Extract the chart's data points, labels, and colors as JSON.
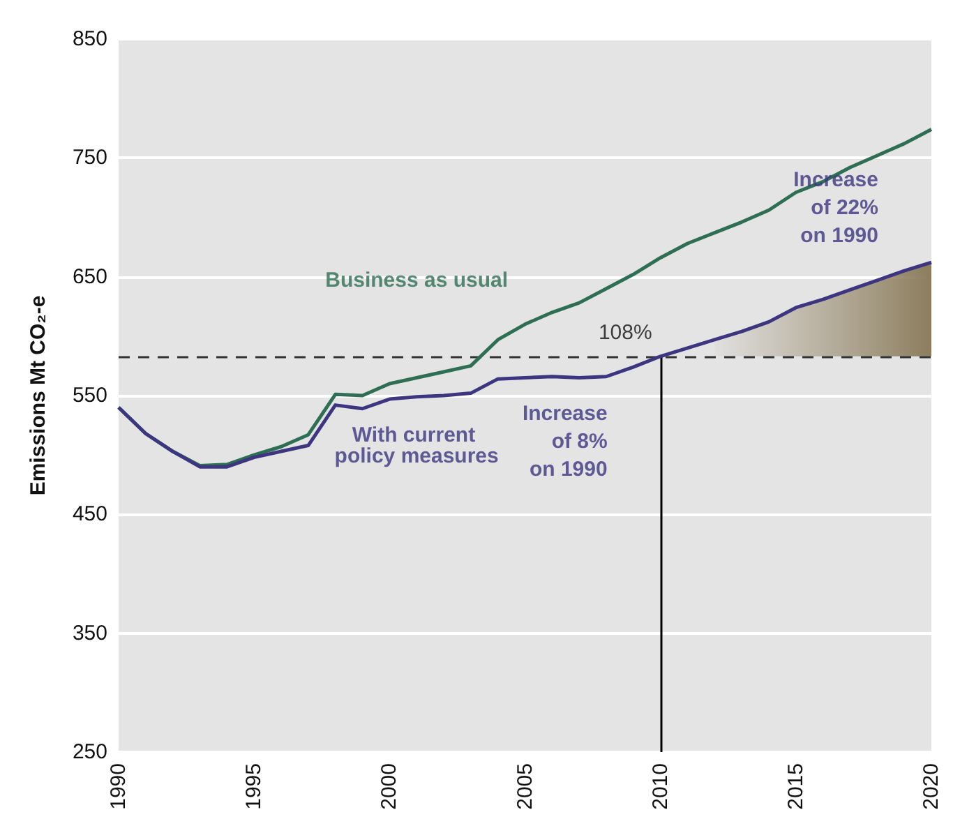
{
  "chart_data": {
    "type": "line",
    "ylabel": "Emissions Mt CO₂-e",
    "x": [
      1990,
      1991,
      1992,
      1993,
      1994,
      1995,
      1996,
      1997,
      1998,
      1999,
      2000,
      2001,
      2002,
      2003,
      2004,
      2005,
      2006,
      2007,
      2008,
      2009,
      2010,
      2011,
      2012,
      2013,
      2014,
      2015,
      2016,
      2017,
      2018,
      2019,
      2020
    ],
    "series": [
      {
        "name": "Business as usual",
        "color": "#2e6e55",
        "values": [
          540,
          518,
          503,
          491,
          492,
          500,
          507,
          517,
          551,
          550,
          560,
          565,
          570,
          575,
          597,
          610,
          620,
          628,
          640,
          652,
          666,
          678,
          687,
          696,
          706,
          721,
          730,
          742,
          752,
          762,
          774
        ]
      },
      {
        "name": "With current policy measures",
        "color": "#3d3580",
        "values": [
          540,
          518,
          503,
          490,
          490,
          498,
          503,
          508,
          542,
          539,
          547,
          549,
          550,
          552,
          564,
          565,
          566,
          565,
          566,
          574,
          583,
          590,
          597,
          604,
          612,
          624,
          631,
          639,
          647,
          655,
          662
        ],
        "lower": [
          null,
          null,
          null,
          null,
          null,
          null,
          null,
          null,
          null,
          null,
          null,
          null,
          null,
          null,
          null,
          null,
          null,
          null,
          null,
          null,
          null,
          null,
          583,
          583,
          583,
          583,
          583,
          583,
          583,
          583,
          583
        ],
        "upper": [
          null,
          null,
          null,
          null,
          null,
          null,
          null,
          null,
          null,
          null,
          null,
          null,
          null,
          null,
          null,
          null,
          null,
          null,
          null,
          null,
          null,
          null,
          597,
          604,
          612,
          624,
          631,
          639,
          647,
          655,
          662
        ]
      }
    ],
    "xlim": [
      1990,
      2020
    ],
    "xticks": [
      1990,
      1995,
      2000,
      2005,
      2010,
      2015,
      2020
    ],
    "ylim": [
      250,
      850
    ],
    "yticks": [
      250,
      350,
      450,
      550,
      650,
      750,
      850
    ],
    "grid": "y",
    "line_style": "solid",
    "ref_lines": [
      {
        "axis": "y",
        "value": 583,
        "line_style": "dashed",
        "color": "#333333"
      },
      {
        "axis": "x",
        "value": 2010,
        "color": "#000000",
        "line_style": "solid"
      }
    ],
    "annotations": [
      "108%",
      "Increase of 8% on 1990",
      "Increase of 22% on 1990"
    ]
  }
}
